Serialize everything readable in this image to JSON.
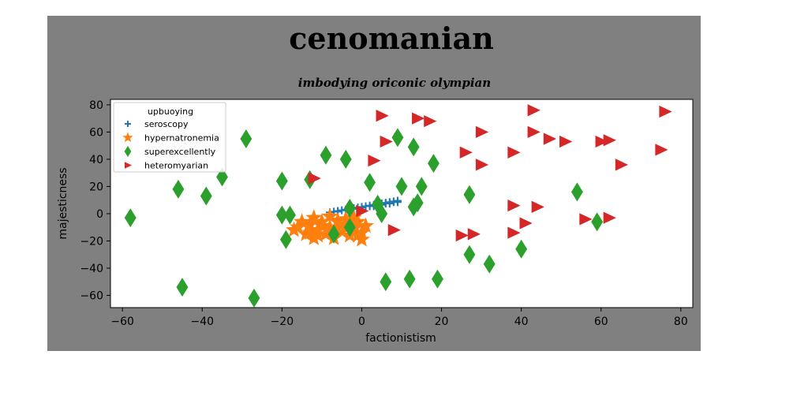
{
  "chart_data": {
    "type": "scatter",
    "title": "cenomanian",
    "subtitle": "imbodying oriconic olympian",
    "xlabel": "factionistism",
    "ylabel": "majesticness",
    "xlim": [
      -63,
      83
    ],
    "ylim": [
      -69,
      84
    ],
    "xticks": [
      -60,
      -40,
      -20,
      0,
      20,
      40,
      60,
      80
    ],
    "yticks": [
      -60,
      -40,
      -20,
      0,
      20,
      40,
      60,
      80
    ],
    "xtick_labels": [
      "−60",
      "−40",
      "−20",
      "0",
      "20",
      "40",
      "60",
      "80"
    ],
    "ytick_labels": [
      "−60",
      "−40",
      "−20",
      "0",
      "20",
      "40",
      "60",
      "80"
    ],
    "grid": false,
    "legend": {
      "title": "upbuoying",
      "position": "upper left"
    },
    "colors": {
      "figure_bg": "#808080",
      "axes_bg": "#ffffff",
      "seroscopy": "#1f77b4",
      "hypernatronemia": "#ff7f0e",
      "superexcellently": "#2ca02c",
      "heteromyarian": "#d62728"
    },
    "series": [
      {
        "name": "seroscopy",
        "marker": "plus",
        "color": "#1f77b4",
        "points": [
          [
            -8,
            1
          ],
          [
            -7,
            1.5
          ],
          [
            -6,
            2
          ],
          [
            -5,
            2.5
          ],
          [
            -4,
            3
          ],
          [
            -3,
            3.5
          ],
          [
            -2,
            4
          ],
          [
            -1,
            4.5
          ],
          [
            0,
            5
          ],
          [
            1,
            5.5
          ],
          [
            2,
            6
          ],
          [
            3,
            6.5
          ],
          [
            4,
            7
          ],
          [
            5,
            7.5
          ],
          [
            6,
            8
          ],
          [
            7,
            8.5
          ],
          [
            8,
            9
          ],
          [
            9,
            9.5
          ],
          [
            -6,
            1.5
          ],
          [
            -4,
            2.5
          ],
          [
            -2,
            3.5
          ],
          [
            0,
            4.5
          ],
          [
            2,
            5.5
          ],
          [
            4,
            6.5
          ],
          [
            6,
            7.5
          ],
          [
            8,
            8.5
          ],
          [
            3,
            5.5
          ],
          [
            5,
            6.5
          ],
          [
            7,
            7.5
          ],
          [
            9,
            8.5
          ]
        ]
      },
      {
        "name": "hypernatronemia",
        "marker": "star",
        "color": "#ff7f0e",
        "points": [
          [
            -17,
            -12
          ],
          [
            -15,
            -6
          ],
          [
            -14,
            -15
          ],
          [
            -13,
            -8
          ],
          [
            -12,
            -3
          ],
          [
            -12,
            -18
          ],
          [
            -11,
            -12
          ],
          [
            -10,
            -6
          ],
          [
            -9,
            -15
          ],
          [
            -8,
            -2
          ],
          [
            -8,
            -10
          ],
          [
            -7,
            -18
          ],
          [
            -6,
            -5
          ],
          [
            -5,
            -13
          ],
          [
            -4,
            -8
          ],
          [
            -3,
            -16
          ],
          [
            -2,
            -3
          ],
          [
            -2,
            -11
          ],
          [
            -1,
            -6
          ],
          [
            0,
            -14
          ],
          [
            1,
            -9
          ],
          [
            -16,
            -10
          ],
          [
            -13,
            -14
          ],
          [
            -10,
            -9
          ],
          [
            -6,
            -11
          ],
          [
            -3,
            -9
          ],
          [
            0,
            -19
          ],
          [
            -11,
            -16
          ],
          [
            -4,
            -4
          ],
          [
            -1,
            -16
          ]
        ]
      },
      {
        "name": "superexcellently",
        "marker": "thin_diamond",
        "color": "#2ca02c",
        "points": [
          [
            -58,
            -3
          ],
          [
            -46,
            18
          ],
          [
            -45,
            -54
          ],
          [
            -39,
            13
          ],
          [
            -35,
            27
          ],
          [
            -29,
            55
          ],
          [
            -27,
            -62
          ],
          [
            -20,
            24
          ],
          [
            -20,
            -1
          ],
          [
            -19,
            -19
          ],
          [
            -18,
            -1
          ],
          [
            -13,
            25
          ],
          [
            -9,
            43
          ],
          [
            -7,
            -15
          ],
          [
            -4,
            40
          ],
          [
            -3,
            -10
          ],
          [
            -3,
            4
          ],
          [
            2,
            23
          ],
          [
            4,
            7
          ],
          [
            5,
            0
          ],
          [
            6,
            -50
          ],
          [
            9,
            56
          ],
          [
            10,
            20
          ],
          [
            12,
            -48
          ],
          [
            13,
            5
          ],
          [
            13,
            49
          ],
          [
            15,
            20
          ],
          [
            18,
            37
          ],
          [
            19,
            -48
          ],
          [
            27,
            -30
          ],
          [
            27,
            14
          ],
          [
            32,
            -37
          ],
          [
            40,
            -26
          ],
          [
            54,
            16
          ],
          [
            59,
            -6
          ],
          [
            14,
            8
          ]
        ]
      },
      {
        "name": "heteromyarian",
        "marker": "triangle_right",
        "color": "#d62728",
        "points": [
          [
            -12,
            26
          ],
          [
            0,
            2
          ],
          [
            3,
            39
          ],
          [
            5,
            72
          ],
          [
            6,
            53
          ],
          [
            8,
            -12
          ],
          [
            14,
            70
          ],
          [
            17,
            68
          ],
          [
            25,
            -16
          ],
          [
            26,
            45
          ],
          [
            28,
            -15
          ],
          [
            30,
            36
          ],
          [
            30,
            60
          ],
          [
            38,
            45
          ],
          [
            38,
            6
          ],
          [
            38,
            -14
          ],
          [
            41,
            -7
          ],
          [
            43,
            76
          ],
          [
            43,
            60
          ],
          [
            44,
            5
          ],
          [
            47,
            55
          ],
          [
            51,
            53
          ],
          [
            56,
            -4
          ],
          [
            60,
            53
          ],
          [
            62,
            54
          ],
          [
            62,
            -3
          ],
          [
            65,
            36
          ],
          [
            75,
            47
          ],
          [
            76,
            75
          ]
        ]
      }
    ]
  }
}
